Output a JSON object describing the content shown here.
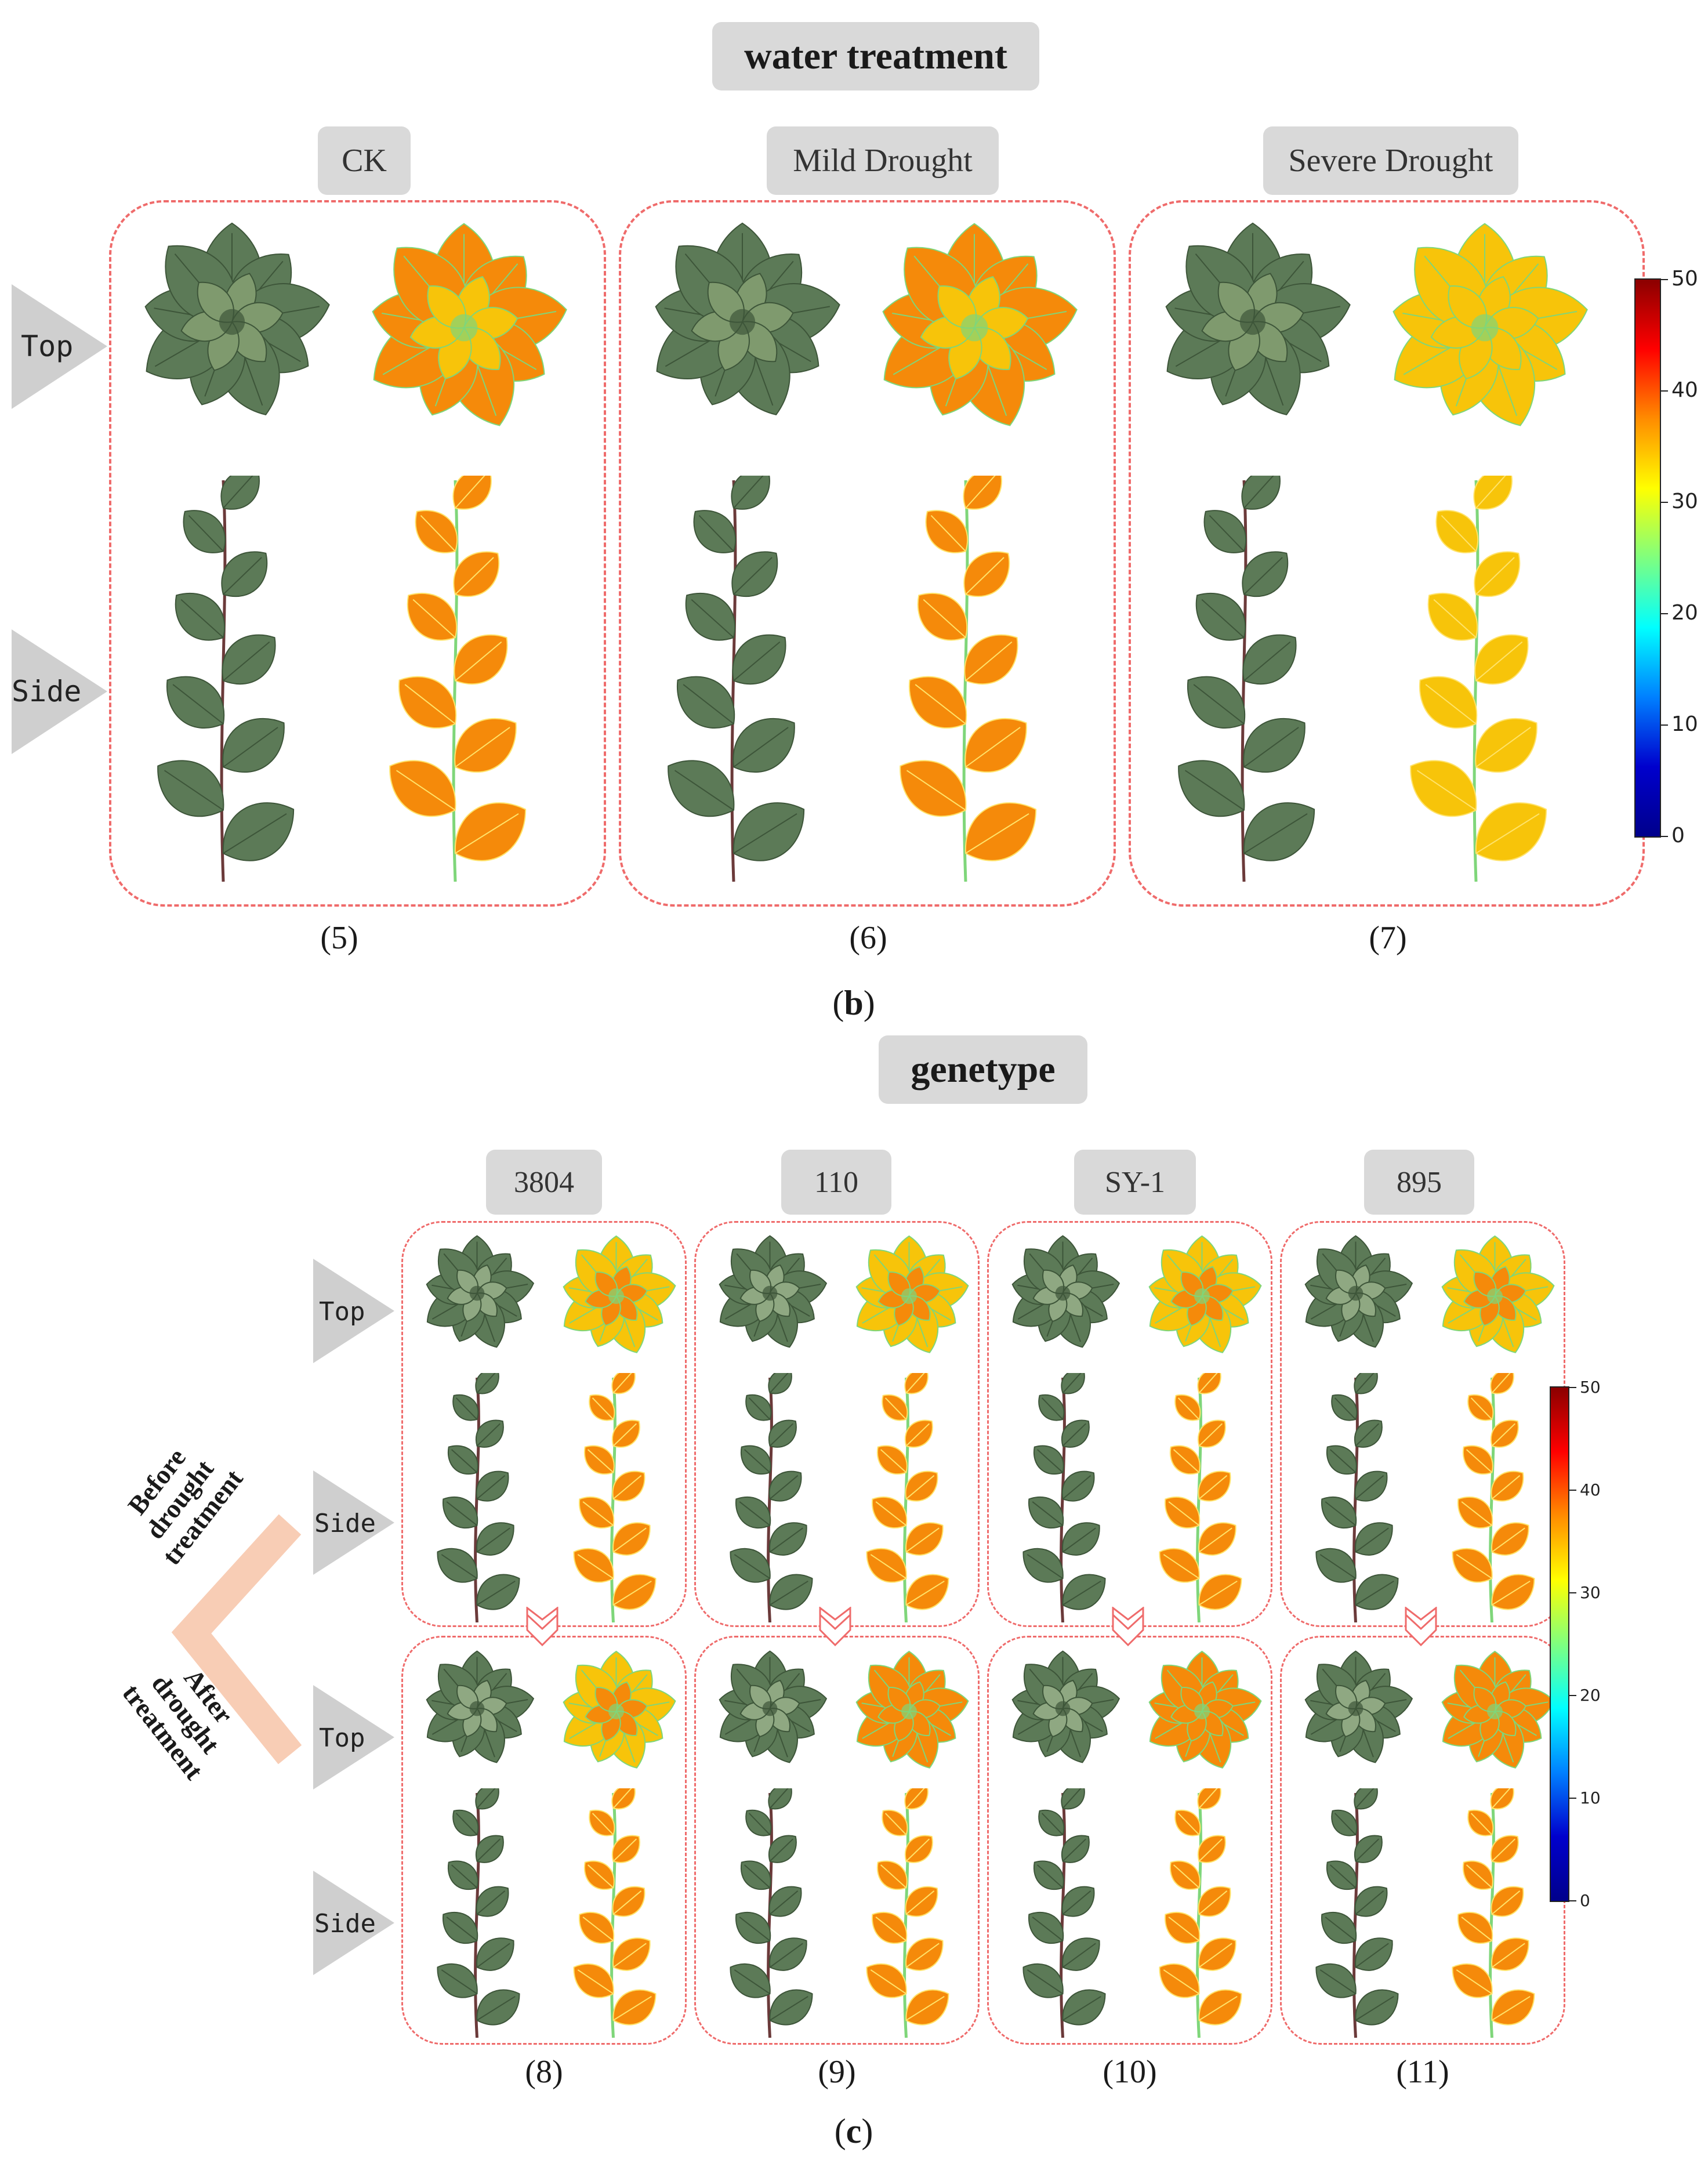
{
  "section_b": {
    "heading": "water treatment",
    "conditions": [
      {
        "label": "CK",
        "number": "(5)"
      },
      {
        "label": "Mild Drought",
        "number": "(6)"
      },
      {
        "label": "Severe Drought",
        "number": "(7)"
      }
    ],
    "rows": {
      "top": "Top",
      "side": "Side"
    },
    "panel_letter": "b"
  },
  "section_c": {
    "heading": "genetype",
    "genotypes": [
      {
        "label": "3804",
        "number": "(8)"
      },
      {
        "label": "110",
        "number": "(9)"
      },
      {
        "label": "SY-1",
        "number": "(10)"
      },
      {
        "label": "895",
        "number": "(11)"
      }
    ],
    "rows": {
      "top": "Top",
      "side": "Side"
    },
    "stages": {
      "before": [
        "Before",
        "drought",
        "treatment"
      ],
      "after": [
        "After",
        "drought",
        "treatment"
      ]
    },
    "panel_letter": "c"
  },
  "colorbar": {
    "ticks": [
      "50",
      "40",
      "30",
      "20",
      "10",
      "0"
    ],
    "stops": [
      "#8b0000",
      "#ff0000",
      "#ff8c00",
      "#ffff00",
      "#7fff7f",
      "#00ffff",
      "#0080ff",
      "#0000cd",
      "#00008b"
    ]
  },
  "colors": {
    "dashed_border": "#ef6b6b",
    "pill_bg": "#d9d9d9",
    "row_arrow": "#cfcfcf",
    "stage_chevron": "#f8cdb5",
    "leaf_green": "#5c7a57",
    "leaf_orange": "#f58a0a",
    "leaf_yellow": "#f7c40a"
  }
}
